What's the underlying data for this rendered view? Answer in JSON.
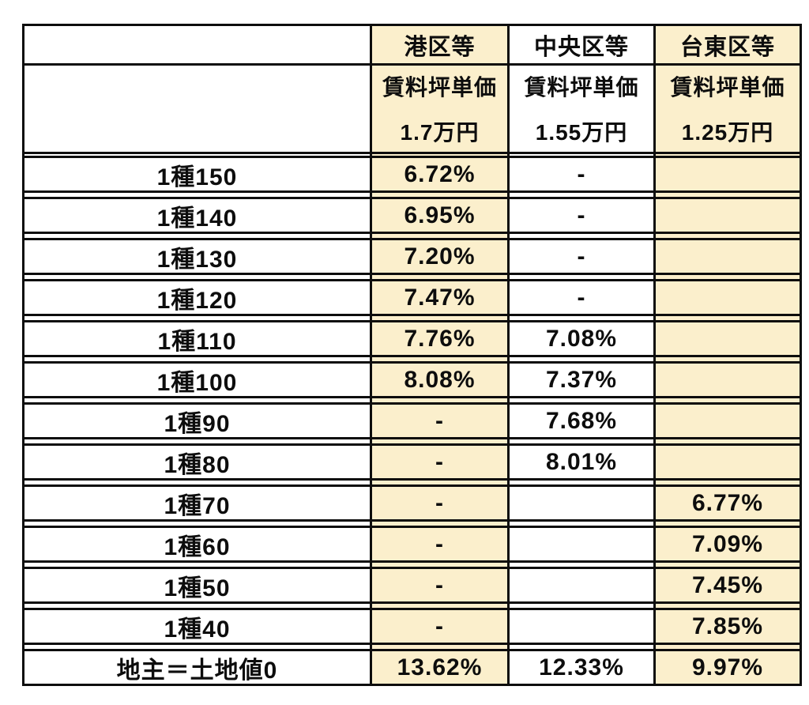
{
  "colors": {
    "highlight": "#FBEFCC",
    "border": "#0d0d0d",
    "background": "#ffffff",
    "text": "#0d0d0d"
  },
  "chart_data": {
    "type": "table",
    "column_groups": [
      "港区等",
      "中央区等",
      "台東区等"
    ],
    "column_subheader_label": "賃料坪単価",
    "column_unit_prices": [
      "1.7万円",
      "1.55万円",
      "1.25万円"
    ],
    "row_header": "",
    "rows": [
      {
        "label": "1種150",
        "values": [
          "6.72%",
          "-",
          ""
        ]
      },
      {
        "label": "1種140",
        "values": [
          "6.95%",
          "-",
          ""
        ]
      },
      {
        "label": "1種130",
        "values": [
          "7.20%",
          "-",
          ""
        ]
      },
      {
        "label": "1種120",
        "values": [
          "7.47%",
          "-",
          ""
        ]
      },
      {
        "label": "1種110",
        "values": [
          "7.76%",
          "7.08%",
          ""
        ]
      },
      {
        "label": "1種100",
        "values": [
          "8.08%",
          "7.37%",
          ""
        ]
      },
      {
        "label": "1種90",
        "values": [
          "-",
          "7.68%",
          ""
        ]
      },
      {
        "label": "1種80",
        "values": [
          "-",
          "8.01%",
          ""
        ]
      },
      {
        "label": "1種70",
        "values": [
          "-",
          "",
          "6.77%"
        ]
      },
      {
        "label": "1種60",
        "values": [
          "-",
          "",
          "7.09%"
        ]
      },
      {
        "label": "1種50",
        "values": [
          "-",
          "",
          "7.45%"
        ]
      },
      {
        "label": "1種40",
        "values": [
          "-",
          "",
          "7.85%"
        ]
      },
      {
        "label": "地主＝土地値0",
        "values": [
          "13.62%",
          "12.33%",
          "9.97%"
        ]
      }
    ]
  }
}
